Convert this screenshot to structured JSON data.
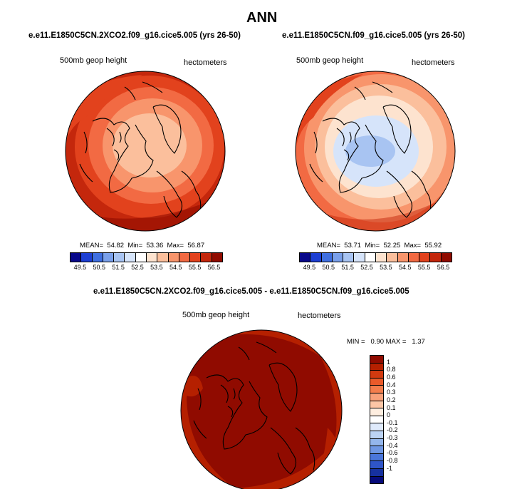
{
  "title": "ANN",
  "panels": [
    {
      "subtitle": "e.e11.E1850C5CN.2XCO2.f09_g16.cice5.005 (yrs 26-50)",
      "field": "500mb geop height",
      "units": "hectometers",
      "mean_label": "MEAN=",
      "mean": "54.82",
      "min_label": "Min=",
      "min": "53.36",
      "max_label": "Max=",
      "max": "56.87"
    },
    {
      "subtitle": "e.e11.E1850C5CN.f09_g16.cice5.005 (yrs 26-50)",
      "field": "500mb geop height",
      "units": "hectometers",
      "mean_label": "MEAN=",
      "mean": "53.71",
      "min_label": "Min=",
      "min": "52.25",
      "max_label": "Max=",
      "max": "55.92"
    }
  ],
  "abs_colorbar": {
    "colors": [
      "#08088a",
      "#1d3fd3",
      "#3f6fe0",
      "#7aa0ea",
      "#a8c4f2",
      "#d6e4fa",
      "#ffffff",
      "#fde3cf",
      "#fbbf9c",
      "#f8956c",
      "#f26a43",
      "#e2421d",
      "#c4270c",
      "#900b00"
    ],
    "labels": [
      "49.5",
      "50.5",
      "51.5",
      "52.5",
      "53.5",
      "54.5",
      "55.5",
      "56.5"
    ]
  },
  "diff": {
    "subtitle": "e.e11.E1850C5CN.2XCO2.f09_g16.cice5.005 - e.e11.E1850C5CN.f09_g16.cice5.005",
    "field": "500mb geop height",
    "units": "hectometers",
    "minmax_text": "MIN =   0.90 MAX =   1.37"
  },
  "diff_colorbar": {
    "colors": [
      "#900b00",
      "#b52000",
      "#d23a10",
      "#ea5a2a",
      "#f47d4c",
      "#f9a17a",
      "#fcc6a6",
      "#feeee0",
      "#ffffff",
      "#dfeafb",
      "#bcd3f4",
      "#94b6ec",
      "#6f97e4",
      "#4a76db",
      "#2f55c8",
      "#16319f",
      "#060b7a"
    ],
    "labels": [
      "1",
      "0.8",
      "0.6",
      "0.4",
      "0.3",
      "0.2",
      "0.1",
      "0",
      "-0.1",
      "-0.2",
      "-0.3",
      "-0.4",
      "-0.6",
      "-0.8",
      "-1"
    ]
  }
}
